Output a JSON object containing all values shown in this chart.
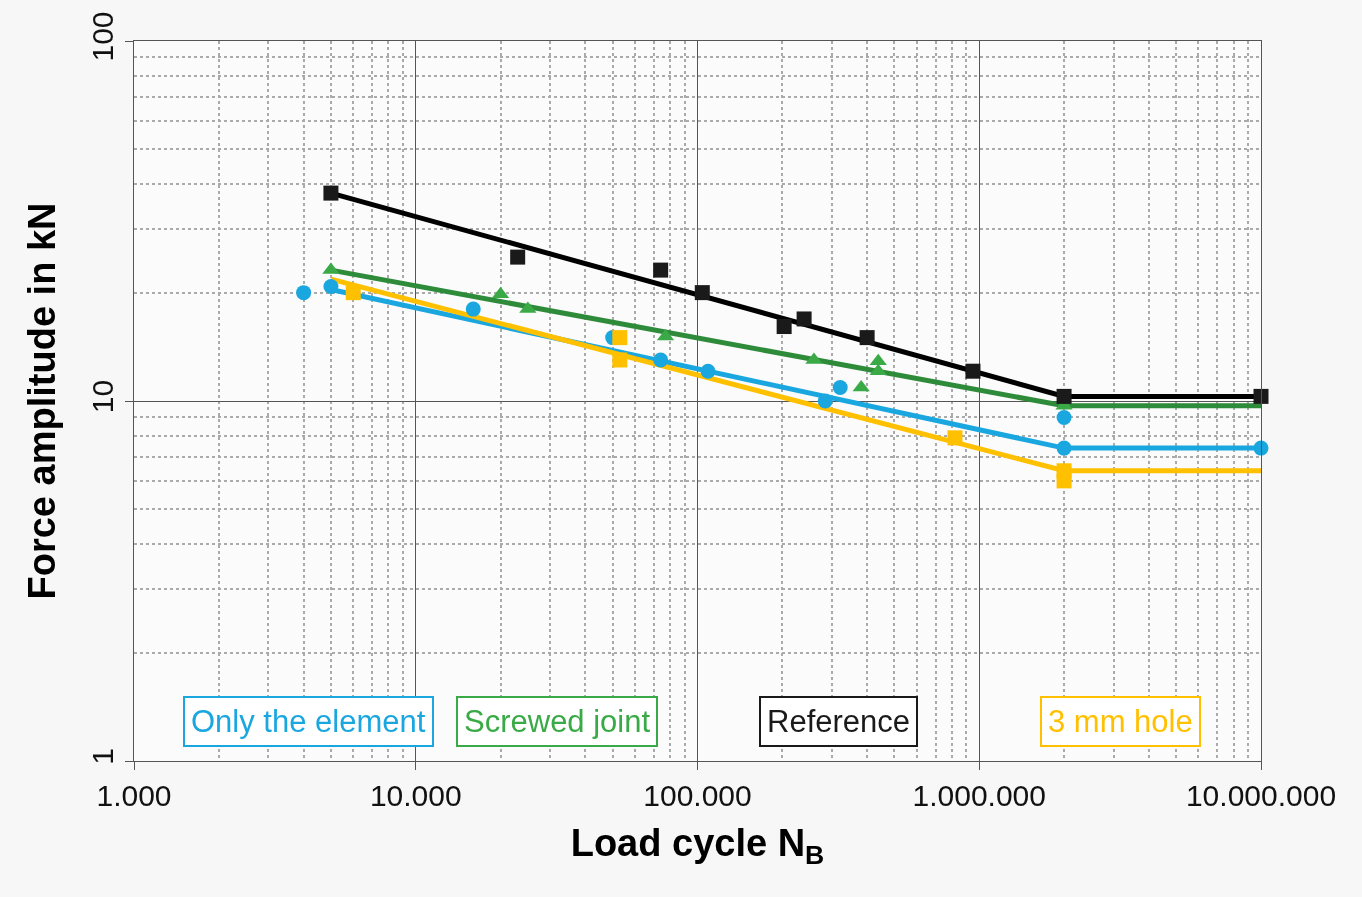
{
  "chart_data": {
    "type": "scatter",
    "xlabel": "Load cycle N$_{B}$",
    "ylabel": "Force amplitude in kN",
    "log": "xy",
    "grid": true,
    "legend": "bottom",
    "xlim": [
      1000,
      10000000
    ],
    "xticks": [
      {
        "value": 1000,
        "label": "1.000"
      },
      {
        "value": 2000,
        "label": null
      },
      {
        "value": 3000,
        "label": null
      },
      {
        "value": 4000,
        "label": null
      },
      {
        "value": 5000,
        "label": null
      },
      {
        "value": 6000,
        "label": null
      },
      {
        "value": 7000,
        "label": null
      },
      {
        "value": 8000,
        "label": null
      },
      {
        "value": 9000,
        "label": null
      },
      {
        "value": 10000,
        "label": "10.000"
      },
      {
        "value": 20000,
        "label": null
      },
      {
        "value": 30000,
        "label": null
      },
      {
        "value": 40000,
        "label": null
      },
      {
        "value": 50000,
        "label": null
      },
      {
        "value": 60000,
        "label": null
      },
      {
        "value": 70000,
        "label": null
      },
      {
        "value": 80000,
        "label": null
      },
      {
        "value": 90000,
        "label": null
      },
      {
        "value": 100000,
        "label": "100.000"
      },
      {
        "value": 200000,
        "label": null
      },
      {
        "value": 300000,
        "label": null
      },
      {
        "value": 400000,
        "label": null
      },
      {
        "value": 500000,
        "label": null
      },
      {
        "value": 600000,
        "label": null
      },
      {
        "value": 700000,
        "label": null
      },
      {
        "value": 800000,
        "label": null
      },
      {
        "value": 900000,
        "label": null
      },
      {
        "value": 1000000,
        "label": "1.000.000"
      },
      {
        "value": 2000000,
        "label": null
      },
      {
        "value": 3000000,
        "label": null
      },
      {
        "value": 4000000,
        "label": null
      },
      {
        "value": 5000000,
        "label": null
      },
      {
        "value": 6000000,
        "label": null
      },
      {
        "value": 7000000,
        "label": null
      },
      {
        "value": 8000000,
        "label": null
      },
      {
        "value": 9000000,
        "label": null
      },
      {
        "value": 10000000,
        "label": "10.000.000"
      }
    ],
    "ylim": [
      1,
      100
    ],
    "yticks": [
      1,
      {
        "value": 2,
        "label": null
      },
      {
        "value": 3,
        "label": null
      },
      {
        "value": 4,
        "label": null
      },
      {
        "value": 5,
        "label": null
      },
      {
        "value": 6,
        "label": null
      },
      {
        "value": 7,
        "label": null
      },
      {
        "value": 8,
        "label": null
      },
      {
        "value": 9,
        "label": null
      },
      10,
      {
        "value": 20,
        "label": null
      },
      {
        "value": 30,
        "label": null
      },
      {
        "value": 40,
        "label": null
      },
      {
        "value": 50,
        "label": null
      },
      {
        "value": 60,
        "label": null
      },
      {
        "value": 70,
        "label": null
      },
      {
        "value": 80,
        "label": null
      },
      {
        "value": 90,
        "label": null
      },
      100
    ],
    "series": [
      {
        "name": "Only the element",
        "color": "#1aa7e0",
        "marker": "circle",
        "x": [
          4000,
          5000,
          16000,
          50000,
          74000,
          109000,
          284000,
          321000,
          2000000,
          2000000,
          10000000
        ],
        "values": [
          20,
          20.8,
          18,
          15,
          13,
          12.1,
          10,
          10.9,
          9.0,
          7.4,
          7.4
        ]
      },
      {
        "type": "line",
        "color": "#1aa7e0",
        "x": [
          5000,
          2000000,
          10000000
        ],
        "values": [
          20.4,
          7.4,
          7.4
        ]
      },
      {
        "name": "Screwed joint",
        "color": "#3aaa47",
        "marker": "triangle",
        "x": [
          5000,
          20000,
          25000,
          77000,
          259000,
          381000,
          438000,
          438000,
          2000000
        ],
        "values": [
          23.1,
          19.8,
          18,
          15.1,
          13,
          10.9,
          12.9,
          12.1,
          9.7
        ]
      },
      {
        "type": "line",
        "color": "#2e8b3a",
        "x": [
          5000,
          2000000,
          10000000
        ],
        "values": [
          23.1,
          9.7,
          9.7
        ]
      },
      {
        "name": "Reference",
        "color": "#1a1a1a",
        "marker": "square",
        "x": [
          5000,
          23000,
          74000,
          104000,
          203000,
          239000,
          400000,
          950000,
          2000000,
          10000000
        ],
        "values": [
          37.8,
          25.1,
          23.1,
          20,
          16.1,
          16.9,
          15,
          12.1,
          10.3,
          10.3
        ]
      },
      {
        "type": "line",
        "color": "#000000",
        "x": [
          5000,
          2000000,
          10000000
        ],
        "values": [
          37.8,
          10.3,
          10.3
        ]
      },
      {
        "name": "3 mm hole",
        "color": "#ffc000",
        "marker": "square",
        "x": [
          6000,
          53000,
          53000,
          820000,
          2000000,
          2000000
        ],
        "values": [
          20,
          15,
          13,
          7.9,
          6.4,
          6.0
        ]
      },
      {
        "type": "line",
        "color": "#ffc000",
        "x": [
          5000,
          2000000,
          10000000
        ],
        "values": [
          21.8,
          6.4,
          6.4
        ]
      }
    ]
  }
}
